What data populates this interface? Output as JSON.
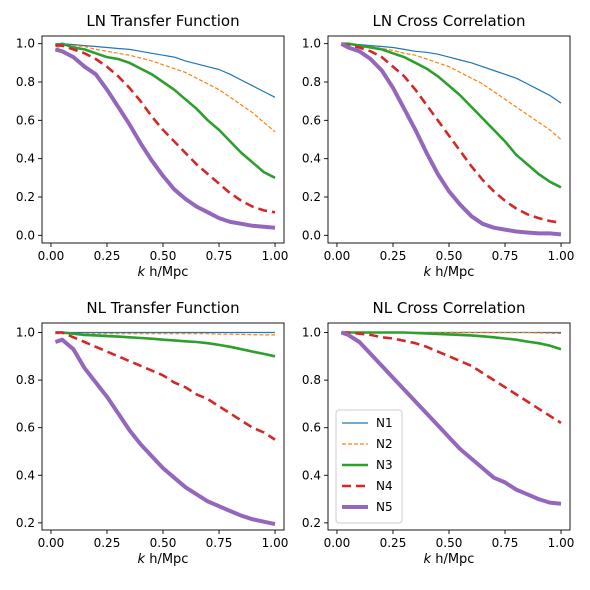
{
  "chart_data": [
    {
      "type": "line",
      "title": "LN Transfer Function",
      "xlabel_italic": "k",
      "xlabel_rest": " h/Mpc",
      "xlim": [
        -0.04,
        1.04
      ],
      "ylim": [
        -0.04,
        1.04
      ],
      "xticks": [
        0.0,
        0.25,
        0.5,
        0.75,
        1.0
      ],
      "xtick_labels": [
        "0.00",
        "0.25",
        "0.50",
        "0.75",
        "1.00"
      ],
      "yticks": [
        0.0,
        0.2,
        0.4,
        0.6,
        0.8,
        1.0
      ],
      "ytick_labels": [
        "0.0",
        "0.2",
        "0.4",
        "0.6",
        "0.8",
        "1.0"
      ],
      "x": [
        0.02,
        0.05,
        0.1,
        0.15,
        0.2,
        0.25,
        0.3,
        0.35,
        0.4,
        0.45,
        0.5,
        0.55,
        0.6,
        0.65,
        0.7,
        0.75,
        0.8,
        0.85,
        0.9,
        0.95,
        1.0
      ],
      "series": [
        {
          "name": "N1",
          "values": [
            1.0,
            1.0,
            0.995,
            0.99,
            0.985,
            0.98,
            0.975,
            0.97,
            0.96,
            0.95,
            0.94,
            0.93,
            0.91,
            0.895,
            0.88,
            0.865,
            0.84,
            0.81,
            0.78,
            0.75,
            0.72
          ]
        },
        {
          "name": "N2",
          "values": [
            0.97,
            0.99,
            0.99,
            0.985,
            0.97,
            0.96,
            0.95,
            0.94,
            0.925,
            0.91,
            0.89,
            0.87,
            0.85,
            0.82,
            0.79,
            0.76,
            0.72,
            0.68,
            0.64,
            0.59,
            0.54
          ]
        },
        {
          "name": "N3",
          "values": [
            0.99,
            1.0,
            0.98,
            0.97,
            0.95,
            0.93,
            0.92,
            0.9,
            0.87,
            0.84,
            0.8,
            0.76,
            0.71,
            0.66,
            0.6,
            0.55,
            0.49,
            0.43,
            0.38,
            0.33,
            0.3
          ]
        },
        {
          "name": "N4",
          "values": [
            0.99,
            0.99,
            0.97,
            0.95,
            0.92,
            0.88,
            0.83,
            0.77,
            0.7,
            0.62,
            0.55,
            0.49,
            0.43,
            0.37,
            0.32,
            0.27,
            0.22,
            0.18,
            0.15,
            0.13,
            0.12
          ]
        },
        {
          "name": "N5",
          "values": [
            0.97,
            0.96,
            0.93,
            0.88,
            0.84,
            0.76,
            0.67,
            0.58,
            0.48,
            0.39,
            0.31,
            0.24,
            0.19,
            0.15,
            0.12,
            0.09,
            0.07,
            0.06,
            0.05,
            0.045,
            0.04
          ]
        }
      ]
    },
    {
      "type": "line",
      "title": "LN Cross Correlation",
      "xlabel_italic": "k",
      "xlabel_rest": " h/Mpc",
      "xlim": [
        -0.04,
        1.04
      ],
      "ylim": [
        -0.04,
        1.04
      ],
      "xticks": [
        0.0,
        0.25,
        0.5,
        0.75,
        1.0
      ],
      "xtick_labels": [
        "0.00",
        "0.25",
        "0.50",
        "0.75",
        "1.00"
      ],
      "yticks": [
        0.0,
        0.2,
        0.4,
        0.6,
        0.8,
        1.0
      ],
      "ytick_labels": [
        "0.0",
        "0.2",
        "0.4",
        "0.6",
        "0.8",
        "1.0"
      ],
      "x": [
        0.02,
        0.05,
        0.1,
        0.15,
        0.2,
        0.25,
        0.3,
        0.35,
        0.4,
        0.45,
        0.5,
        0.55,
        0.6,
        0.65,
        0.7,
        0.75,
        0.8,
        0.85,
        0.9,
        0.95,
        1.0
      ],
      "series": [
        {
          "name": "N1",
          "values": [
            1.0,
            1.0,
            0.995,
            0.99,
            0.985,
            0.98,
            0.97,
            0.96,
            0.955,
            0.945,
            0.93,
            0.915,
            0.9,
            0.88,
            0.86,
            0.84,
            0.82,
            0.79,
            0.76,
            0.73,
            0.69
          ]
        },
        {
          "name": "N2",
          "values": [
            1.0,
            1.0,
            0.99,
            0.985,
            0.975,
            0.965,
            0.95,
            0.94,
            0.92,
            0.9,
            0.88,
            0.85,
            0.82,
            0.79,
            0.75,
            0.71,
            0.67,
            0.63,
            0.59,
            0.55,
            0.5
          ]
        },
        {
          "name": "N3",
          "values": [
            1.0,
            1.0,
            0.99,
            0.98,
            0.97,
            0.95,
            0.93,
            0.9,
            0.87,
            0.83,
            0.78,
            0.73,
            0.67,
            0.61,
            0.55,
            0.49,
            0.42,
            0.37,
            0.32,
            0.28,
            0.25
          ]
        },
        {
          "name": "N4",
          "values": [
            1.0,
            0.99,
            0.98,
            0.96,
            0.93,
            0.88,
            0.83,
            0.76,
            0.68,
            0.6,
            0.52,
            0.44,
            0.36,
            0.29,
            0.23,
            0.18,
            0.14,
            0.11,
            0.09,
            0.075,
            0.065
          ]
        },
        {
          "name": "N5",
          "values": [
            1.0,
            0.98,
            0.96,
            0.92,
            0.86,
            0.77,
            0.66,
            0.55,
            0.43,
            0.32,
            0.23,
            0.16,
            0.1,
            0.06,
            0.04,
            0.03,
            0.02,
            0.015,
            0.01,
            0.01,
            0.005
          ]
        }
      ]
    },
    {
      "type": "line",
      "title": "NL Transfer Function",
      "xlabel_italic": "k",
      "xlabel_rest": " h/Mpc",
      "xlim": [
        -0.04,
        1.04
      ],
      "ylim": [
        0.17,
        1.04
      ],
      "xticks": [
        0.0,
        0.25,
        0.5,
        0.75,
        1.0
      ],
      "xtick_labels": [
        "0.00",
        "0.25",
        "0.50",
        "0.75",
        "1.00"
      ],
      "yticks": [
        0.2,
        0.4,
        0.6,
        0.8,
        1.0
      ],
      "ytick_labels": [
        "0.2",
        "0.4",
        "0.6",
        "0.8",
        "1.0"
      ],
      "x": [
        0.02,
        0.05,
        0.1,
        0.15,
        0.2,
        0.25,
        0.3,
        0.35,
        0.4,
        0.45,
        0.5,
        0.55,
        0.6,
        0.65,
        0.7,
        0.75,
        0.8,
        0.85,
        0.9,
        0.95,
        1.0
      ],
      "series": [
        {
          "name": "N1",
          "values": [
            1.0,
            1.0,
            1.0,
            1.0,
            1.0,
            1.0,
            1.0,
            1.0,
            1.0,
            1.0,
            1.0,
            1.0,
            1.0,
            1.0,
            1.0,
            1.0,
            1.0,
            1.0,
            1.0,
            1.0,
            1.0
          ]
        },
        {
          "name": "N2",
          "values": [
            0.995,
            0.995,
            0.995,
            0.995,
            0.995,
            0.995,
            0.995,
            0.995,
            0.995,
            0.995,
            0.995,
            0.995,
            0.995,
            0.995,
            0.995,
            0.993,
            0.993,
            0.992,
            0.991,
            0.99,
            0.99
          ]
        },
        {
          "name": "N3",
          "values": [
            1.0,
            1.0,
            0.995,
            0.99,
            0.988,
            0.985,
            0.983,
            0.98,
            0.977,
            0.974,
            0.97,
            0.967,
            0.963,
            0.96,
            0.955,
            0.948,
            0.94,
            0.93,
            0.92,
            0.91,
            0.9
          ]
        },
        {
          "name": "N4",
          "values": [
            1.0,
            1.0,
            0.98,
            0.96,
            0.94,
            0.92,
            0.9,
            0.88,
            0.86,
            0.84,
            0.82,
            0.79,
            0.77,
            0.74,
            0.72,
            0.69,
            0.66,
            0.63,
            0.6,
            0.58,
            0.55
          ]
        },
        {
          "name": "N5",
          "values": [
            0.96,
            0.97,
            0.93,
            0.85,
            0.79,
            0.73,
            0.66,
            0.59,
            0.53,
            0.48,
            0.43,
            0.39,
            0.35,
            0.32,
            0.29,
            0.27,
            0.25,
            0.23,
            0.215,
            0.205,
            0.195
          ]
        }
      ]
    },
    {
      "type": "line",
      "title": "NL Cross Correlation",
      "xlabel_italic": "k",
      "xlabel_rest": " h/Mpc",
      "xlim": [
        -0.04,
        1.04
      ],
      "ylim": [
        0.17,
        1.04
      ],
      "xticks": [
        0.0,
        0.25,
        0.5,
        0.75,
        1.0
      ],
      "xtick_labels": [
        "0.00",
        "0.25",
        "0.50",
        "0.75",
        "1.00"
      ],
      "yticks": [
        0.2,
        0.4,
        0.6,
        0.8,
        1.0
      ],
      "ytick_labels": [
        "0.2",
        "0.4",
        "0.6",
        "0.8",
        "1.0"
      ],
      "legend": "lower-left",
      "x": [
        0.02,
        0.05,
        0.1,
        0.15,
        0.2,
        0.25,
        0.3,
        0.35,
        0.4,
        0.45,
        0.5,
        0.55,
        0.6,
        0.65,
        0.7,
        0.75,
        0.8,
        0.85,
        0.9,
        0.95,
        1.0
      ],
      "series": [
        {
          "name": "N1",
          "values": [
            1.0,
            1.0,
            1.0,
            1.0,
            1.0,
            1.0,
            1.0,
            1.0,
            1.0,
            1.0,
            1.0,
            1.0,
            1.0,
            1.0,
            1.0,
            1.0,
            1.0,
            1.0,
            1.0,
            1.0,
            1.0
          ]
        },
        {
          "name": "N2",
          "values": [
            1.0,
            1.0,
            1.0,
            1.0,
            1.0,
            1.0,
            1.0,
            1.0,
            1.0,
            1.0,
            1.0,
            1.0,
            1.0,
            1.0,
            1.0,
            1.0,
            1.0,
            1.0,
            0.998,
            0.997,
            0.996
          ]
        },
        {
          "name": "N3",
          "values": [
            1.0,
            1.0,
            1.0,
            1.0,
            1.0,
            1.0,
            1.0,
            0.998,
            0.996,
            0.994,
            0.992,
            0.99,
            0.988,
            0.984,
            0.98,
            0.975,
            0.97,
            0.962,
            0.955,
            0.945,
            0.93
          ]
        },
        {
          "name": "N4",
          "values": [
            1.0,
            1.0,
            0.995,
            0.99,
            0.98,
            0.975,
            0.965,
            0.955,
            0.94,
            0.92,
            0.9,
            0.88,
            0.86,
            0.83,
            0.8,
            0.77,
            0.74,
            0.71,
            0.68,
            0.65,
            0.62
          ]
        },
        {
          "name": "N5",
          "values": [
            1.0,
            0.99,
            0.96,
            0.91,
            0.86,
            0.81,
            0.76,
            0.71,
            0.66,
            0.61,
            0.56,
            0.51,
            0.47,
            0.43,
            0.39,
            0.37,
            0.34,
            0.32,
            0.3,
            0.285,
            0.28
          ]
        }
      ]
    }
  ],
  "series_styles": {
    "N1": {
      "color": "#1f77b4",
      "dash": "none",
      "width": 1.2
    },
    "N2": {
      "color": "#ff7f0e",
      "dash": "4,2",
      "width": 1.2
    },
    "N3": {
      "color": "#2ca02c",
      "dash": "none",
      "width": 2.6
    },
    "N4": {
      "color": "#d62728",
      "dash": "9,5",
      "width": 2.6
    },
    "N5": {
      "color": "#9467bd",
      "dash": "none",
      "width": 4.0
    }
  }
}
